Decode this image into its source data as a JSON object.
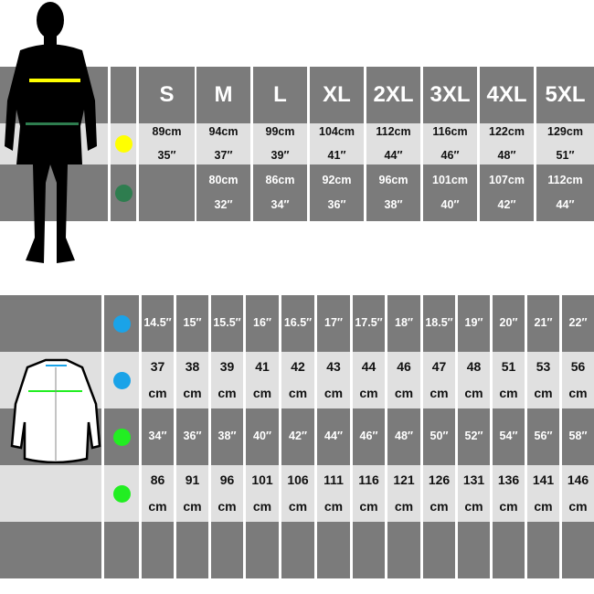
{
  "top_table": {
    "sizes": [
      "S",
      "M",
      "L",
      "XL",
      "2XL",
      "3XL",
      "4XL",
      "5XL"
    ],
    "chest": {
      "color": "#ffff00",
      "cm": [
        "89cm",
        "94cm",
        "99cm",
        "104cm",
        "112cm",
        "116cm",
        "122cm",
        "129cm"
      ],
      "in": [
        "35″",
        "37″",
        "39″",
        "41″",
        "44″",
        "46″",
        "48″",
        "51″"
      ]
    },
    "waist": {
      "color": "#2e7d4f",
      "cm": [
        "",
        "80cm",
        "86cm",
        "92cm",
        "96cm",
        "101cm",
        "107cm",
        "112cm"
      ],
      "in": [
        "",
        "32″",
        "34″",
        "36″",
        "38″",
        "40″",
        "42″",
        "44″"
      ]
    }
  },
  "bottom_table": {
    "collar_color": "#1aa3e8",
    "chest_color": "#22ee22",
    "collar_in": [
      "14.5″",
      "15″",
      "15.5″",
      "16″",
      "16.5″",
      "17″",
      "17.5″",
      "18″",
      "18.5″",
      "19″",
      "20″",
      "21″",
      "22″"
    ],
    "collar_cm": [
      "37",
      "38",
      "39",
      "41",
      "42",
      "43",
      "44",
      "46",
      "47",
      "48",
      "51",
      "53",
      "56"
    ],
    "chest_in": [
      "34″",
      "36″",
      "38″",
      "40″",
      "42″",
      "44″",
      "46″",
      "48″",
      "50″",
      "52″",
      "54″",
      "56″",
      "58″"
    ],
    "chest_cm": [
      "86",
      "91",
      "96",
      "101",
      "106",
      "111",
      "116",
      "121",
      "126",
      "131",
      "136",
      "141",
      "146"
    ],
    "unit": "cm"
  }
}
